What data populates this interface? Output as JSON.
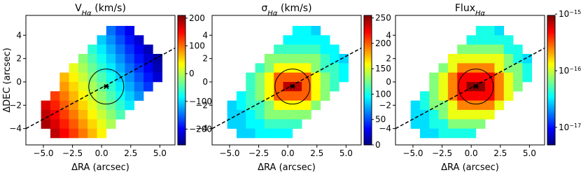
{
  "chart_data": [
    {
      "type": "map",
      "title": {
        "main": "V",
        "sub": "Hα",
        "rest": " (km/s)"
      },
      "xlabel": "ΔRA (arcsec)",
      "ylabel": "ΔDEC (arcsec)",
      "xlim": [
        -6.5,
        6.3
      ],
      "ylim": [
        -5.4,
        5.7
      ],
      "xticks": [
        {
          "value": -5,
          "label": "−5.0"
        },
        {
          "value": -2.5,
          "label": "−2.5"
        },
        {
          "value": 0,
          "label": "0.0"
        },
        {
          "value": 2.5,
          "label": "2.5"
        },
        {
          "value": 5,
          "label": "5.0"
        }
      ],
      "yticks": [
        {
          "value": -4,
          "label": "−4"
        },
        {
          "value": -2,
          "label": "−2"
        },
        0,
        2,
        4
      ],
      "pixel_size": 0.8,
      "x": [
        -4.8,
        -4.0,
        -3.2,
        -2.4,
        -1.6,
        -0.8,
        0,
        0.8,
        1.6,
        2.4,
        3.2,
        4.0,
        4.8
      ],
      "y": [
        4.4,
        3.6,
        2.8,
        2.0,
        1.2,
        0.4,
        -0.4,
        -1.2,
        -2.0,
        -2.8,
        -3.6,
        -4.4
      ],
      "z": [
        [
          null,
          null,
          null,
          null,
          null,
          null,
          null,
          -147,
          -176,
          -205,
          null,
          null,
          null
        ],
        [
          null,
          null,
          null,
          null,
          null,
          null,
          -105,
          -133,
          -162,
          -191,
          -219,
          null,
          null
        ],
        [
          null,
          null,
          null,
          null,
          null,
          -62,
          -90,
          -118,
          -147,
          -176,
          -204,
          -232,
          null
        ],
        [
          null,
          null,
          null,
          null,
          -19,
          -48,
          -76,
          -104,
          -133,
          -162,
          -190,
          -218,
          -240
        ],
        [
          null,
          null,
          null,
          24,
          -5,
          -34,
          -62,
          -90,
          -119,
          -148,
          -176,
          -204,
          -233
        ],
        [
          null,
          null,
          67,
          39,
          10,
          -19,
          -47,
          -75,
          -104,
          -133,
          -161,
          -189,
          -218
        ],
        [
          null,
          null,
          81,
          53,
          24,
          -5,
          -33,
          -61,
          -90,
          -119,
          -147,
          -175,
          null
        ],
        [
          null,
          124,
          96,
          68,
          39,
          10,
          -18,
          -46,
          -75,
          -104,
          -132,
          null,
          null
        ],
        [
          167,
          138,
          110,
          82,
          53,
          24,
          -4,
          -32,
          -61,
          -90,
          null,
          null,
          null
        ],
        [
          181,
          152,
          124,
          96,
          67,
          38,
          10,
          -18,
          -47,
          null,
          null,
          null,
          null
        ],
        [
          190,
          167,
          139,
          111,
          82,
          53,
          25,
          -3,
          null,
          null,
          null,
          null,
          null
        ],
        [
          null,
          181,
          153,
          125,
          96,
          67,
          39,
          null,
          null,
          null,
          null,
          null,
          null
        ]
      ],
      "colorbar": {
        "cmap": "jet",
        "log": false,
        "clim": [
          -257,
          210
        ],
        "ticks": [
          {
            "value": -200,
            "label": "−200"
          },
          {
            "value": -100,
            "label": "−100"
          },
          0,
          100,
          200
        ]
      },
      "major_axis": {
        "x": [
          -6.5,
          6.3
        ],
        "y": [
          -4.0,
          2.9
        ]
      },
      "circle": {
        "center": [
          0.4,
          -0.4
        ],
        "radius": 1.5
      }
    },
    {
      "type": "map",
      "title": {
        "main": "σ",
        "sub": "Hα",
        "rest": " (km/s)"
      },
      "xlabel": "ΔRA (arcsec)",
      "xlim": [
        -6.5,
        6.3
      ],
      "ylim": [
        -5.4,
        5.7
      ],
      "xticks": [
        {
          "value": -5,
          "label": "−5.0"
        },
        {
          "value": -2.5,
          "label": "−2.5"
        },
        {
          "value": 0,
          "label": "0.0"
        },
        {
          "value": 2.5,
          "label": "2.5"
        },
        {
          "value": 5,
          "label": "5.0"
        }
      ],
      "yticks": [
        {
          "value": -4,
          "label": "−4"
        },
        {
          "value": -2,
          "label": "−2"
        },
        0,
        2,
        4
      ],
      "pixel_size": 0.8,
      "x": [
        -4.8,
        -4.0,
        -3.2,
        -2.4,
        -1.6,
        -0.8,
        0,
        0.8,
        1.6,
        2.4,
        3.2,
        4.0,
        4.8
      ],
      "y": [
        4.4,
        3.6,
        2.8,
        2.0,
        1.2,
        0.4,
        -0.4,
        -1.2,
        -2.0,
        -2.8,
        -3.6,
        -4.4
      ],
      "z": [
        [
          null,
          null,
          null,
          null,
          null,
          null,
          null,
          95,
          95,
          85,
          null,
          null,
          null
        ],
        [
          null,
          null,
          null,
          null,
          null,
          null,
          95,
          95,
          95,
          95,
          95,
          null,
          null
        ],
        [
          null,
          null,
          null,
          null,
          null,
          110,
          110,
          110,
          110,
          110,
          95,
          95,
          null
        ],
        [
          null,
          null,
          null,
          null,
          130,
          130,
          130,
          130,
          130,
          130,
          110,
          95,
          85
        ],
        [
          null,
          null,
          null,
          110,
          130,
          160,
          160,
          160,
          160,
          130,
          110,
          110,
          95
        ],
        [
          null,
          null,
          110,
          130,
          160,
          200,
          200,
          200,
          200,
          160,
          130,
          110,
          95
        ],
        [
          null,
          null,
          110,
          130,
          160,
          200,
          240,
          240,
          200,
          160,
          130,
          110,
          null
        ],
        [
          null,
          95,
          110,
          130,
          160,
          200,
          200,
          200,
          200,
          160,
          130,
          null,
          null
        ],
        [
          85,
          95,
          110,
          110,
          130,
          160,
          160,
          160,
          160,
          130,
          null,
          null,
          null
        ],
        [
          85,
          85,
          95,
          110,
          130,
          130,
          130,
          130,
          130,
          null,
          null,
          null,
          null
        ],
        [
          85,
          85,
          95,
          95,
          110,
          110,
          110,
          110,
          null,
          null,
          null,
          null,
          null
        ],
        [
          null,
          85,
          85,
          95,
          95,
          95,
          95,
          null,
          null,
          null,
          null,
          null,
          null
        ]
      ],
      "colorbar": {
        "cmap": "jet",
        "log": false,
        "clim": [
          0,
          255
        ],
        "ticks": [
          0,
          50,
          100,
          150,
          200,
          250
        ]
      },
      "major_axis": {
        "x": [
          -6.5,
          6.3
        ],
        "y": [
          -4.0,
          2.9
        ]
      },
      "circle": {
        "center": [
          0.4,
          -0.4
        ],
        "radius": 1.5
      }
    },
    {
      "type": "map",
      "title": {
        "main": "Flux",
        "sub": "Hα"
      },
      "xlabel": "ΔRA (arcsec)",
      "xlim": [
        -6.5,
        6.3
      ],
      "ylim": [
        -5.4,
        5.7
      ],
      "xticks": [
        {
          "value": -5,
          "label": "−5.0"
        },
        {
          "value": -2.5,
          "label": "−2.5"
        },
        {
          "value": 0,
          "label": "0.0"
        },
        {
          "value": 2.5,
          "label": "2.5"
        },
        {
          "value": 5,
          "label": "5.0"
        }
      ],
      "yticks": [
        {
          "value": -4,
          "label": "−4"
        },
        {
          "value": -2,
          "label": "−2"
        },
        0,
        2,
        4
      ],
      "pixel_size": 0.8,
      "x": [
        -4.8,
        -4.0,
        -3.2,
        -2.4,
        -1.6,
        -0.8,
        0,
        0.8,
        1.6,
        2.4,
        3.2,
        4.0,
        4.8
      ],
      "y": [
        4.4,
        3.6,
        2.8,
        2.0,
        1.2,
        0.4,
        -0.4,
        -1.2,
        -2.0,
        -2.8,
        -3.6,
        -4.4
      ],
      "z": [
        [
          null,
          null,
          null,
          null,
          null,
          null,
          null,
          4e-17,
          4e-17,
          3e-17,
          null,
          null,
          null
        ],
        [
          null,
          null,
          null,
          null,
          null,
          null,
          4e-17,
          4e-17,
          4e-17,
          4e-17,
          4e-17,
          null,
          null
        ],
        [
          null,
          null,
          null,
          null,
          null,
          7e-17,
          7e-17,
          7e-17,
          7e-17,
          7e-17,
          4e-17,
          4e-17,
          null
        ],
        [
          null,
          null,
          null,
          null,
          1.2e-16,
          1.2e-16,
          1.2e-16,
          1.2e-16,
          1.2e-16,
          1.2e-16,
          7e-17,
          4e-17,
          3e-17
        ],
        [
          null,
          null,
          null,
          7e-17,
          1.2e-16,
          2.5e-16,
          2.5e-16,
          2.5e-16,
          2.5e-16,
          1.2e-16,
          7e-17,
          7e-17,
          4e-17
        ],
        [
          null,
          null,
          7e-17,
          1.2e-16,
          2.5e-16,
          5e-16,
          5e-16,
          5e-16,
          5e-16,
          2.5e-16,
          1.2e-16,
          7e-17,
          4e-17
        ],
        [
          null,
          null,
          7e-17,
          1.2e-16,
          2.5e-16,
          5e-16,
          9e-16,
          9e-16,
          5e-16,
          2.5e-16,
          1.2e-16,
          7e-17,
          null
        ],
        [
          null,
          4e-17,
          7e-17,
          1.2e-16,
          2.5e-16,
          5e-16,
          5e-16,
          5e-16,
          5e-16,
          2.5e-16,
          1.2e-16,
          null,
          null
        ],
        [
          3e-17,
          4e-17,
          7e-17,
          7e-17,
          1.2e-16,
          2.5e-16,
          2.5e-16,
          2.5e-16,
          2.5e-16,
          1.2e-16,
          null,
          null,
          null
        ],
        [
          3e-17,
          3e-17,
          4e-17,
          7e-17,
          1.2e-16,
          1.2e-16,
          1.2e-16,
          1.2e-16,
          1.2e-16,
          null,
          null,
          null,
          null
        ],
        [
          3e-17,
          3e-17,
          4e-17,
          4e-17,
          7e-17,
          7e-17,
          7e-17,
          7e-17,
          null,
          null,
          null,
          null,
          null
        ],
        [
          null,
          3e-17,
          3e-17,
          4e-17,
          4e-17,
          4e-17,
          4e-17,
          null,
          null,
          null,
          null,
          null,
          null
        ]
      ],
      "colorbar": {
        "cmap": "jet",
        "log": true,
        "clim": [
          4.9e-18,
          9.5e-16
        ],
        "ticks": [
          {
            "value": 1e-17,
            "label": "10",
            "exponent": "−17"
          },
          {
            "value": 1e-16,
            "label": "10",
            "exponent": "−16"
          },
          {
            "value": 1e-15,
            "label": "10",
            "exponent": "−15"
          }
        ]
      },
      "major_axis": {
        "x": [
          -6.5,
          6.3
        ],
        "y": [
          -4.0,
          2.9
        ]
      },
      "circle": {
        "center": [
          0.4,
          -0.4
        ],
        "radius": 1.5
      }
    }
  ]
}
